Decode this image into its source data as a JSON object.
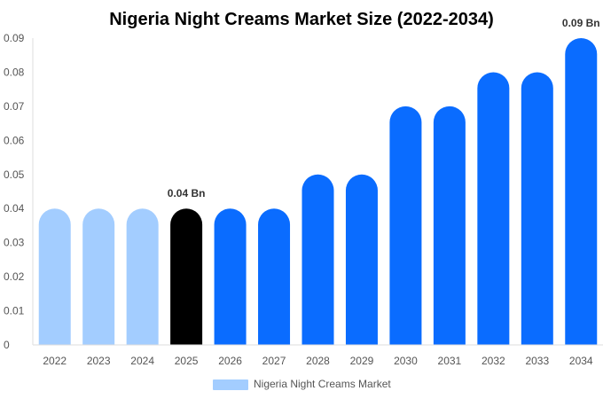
{
  "chart_data": {
    "type": "bar",
    "title": "Nigeria Night Creams Market Size (2022-2034)",
    "categories": [
      "2022",
      "2023",
      "2024",
      "2025",
      "2026",
      "2027",
      "2028",
      "2029",
      "2030",
      "2031",
      "2032",
      "2033",
      "2034"
    ],
    "series": [
      {
        "name": "Nigeria Night Creams Market",
        "values": [
          0.04,
          0.04,
          0.04,
          0.04,
          0.04,
          0.04,
          0.05,
          0.05,
          0.07,
          0.07,
          0.08,
          0.08,
          0.09
        ]
      }
    ],
    "ylim": [
      0,
      0.09
    ],
    "yticks": [
      "0",
      "0.01",
      "0.02",
      "0.03",
      "0.04",
      "0.05",
      "0.06",
      "0.07",
      "0.08",
      "0.09"
    ],
    "data_labels": [
      {
        "category": "2025",
        "text": "0.04 Bn"
      },
      {
        "category": "2034",
        "text": "0.09 Bn"
      }
    ],
    "colors": {
      "historical": "#a3cdff",
      "current": "#000000",
      "forecast": "#0a6cff",
      "legend": "#a3cdff"
    },
    "historical_categories": [
      "2022",
      "2023",
      "2024"
    ],
    "highlight_category": "2025",
    "grid": false,
    "legend_position": "bottom"
  }
}
